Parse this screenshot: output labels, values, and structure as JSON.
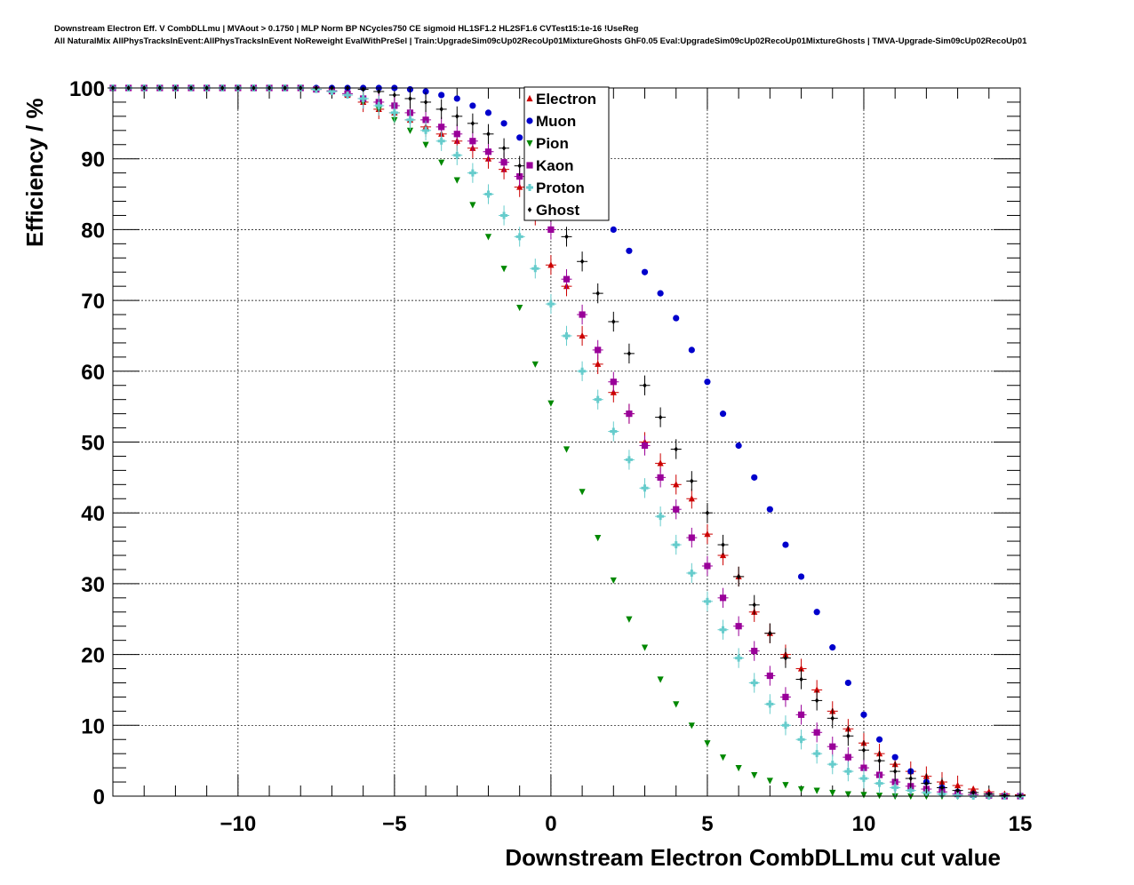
{
  "titles": {
    "line1": "Downstream Electron Eff. V CombDLLmu | MVAout > 0.1750 | MLP Norm BP NCycles750 CE sigmoid HL1SF1.2 HL2SF1.6 CVTest15:1e-16 !UseReg",
    "line2": "All NaturalMix AllPhysTracksInEvent:AllPhysTracksInEvent NoReweight EvalWithPreSel | Train:UpgradeSim09cUp02RecoUp01MixtureGhosts GhF0.05 Eval:UpgradeSim09cUp02RecoUp01MixtureGhosts | TMVA-Upgrade-Sim09cUp02RecoUp01"
  },
  "chart_data": {
    "type": "scatter",
    "xlabel": "Downstream Electron CombDLLmu cut value",
    "ylabel": "Efficiency / %",
    "xlim": [
      -14,
      15
    ],
    "ylim": [
      0,
      100
    ],
    "x_ticks": [
      -10,
      -5,
      0,
      5,
      10,
      15
    ],
    "x_tick_labels": [
      "−10",
      "−5",
      "0",
      "5",
      "10",
      "15"
    ],
    "y_ticks": [
      0,
      10,
      20,
      30,
      40,
      50,
      60,
      70,
      80,
      90,
      100
    ],
    "y_tick_labels": [
      "0",
      "10",
      "20",
      "30",
      "40",
      "50",
      "60",
      "70",
      "80",
      "90",
      "100"
    ],
    "grid": true,
    "legend_position": "top-center",
    "x": [
      -14,
      -13.5,
      -13,
      -12.5,
      -12,
      -11.5,
      -11,
      -10.5,
      -10,
      -9.5,
      -9,
      -8.5,
      -8,
      -7.5,
      -7,
      -6.5,
      -6,
      -5.5,
      -5,
      -4.5,
      -4,
      -3.5,
      -3,
      -2.5,
      -2,
      -1.5,
      -1,
      -0.5,
      0,
      0.5,
      1,
      1.5,
      2,
      2.5,
      3,
      3.5,
      4,
      4.5,
      5,
      5.5,
      6,
      6.5,
      7,
      7.5,
      8,
      8.5,
      9,
      9.5,
      10,
      10.5,
      11,
      11.5,
      12,
      12.5,
      13,
      13.5,
      14,
      14.5,
      15
    ],
    "series": [
      {
        "name": "Electron",
        "color": "#cc0000",
        "marker": "triangle-up",
        "error_bars": true,
        "values": [
          100,
          100,
          100,
          100,
          100,
          100,
          100,
          100,
          100,
          100,
          100,
          100,
          100,
          99.8,
          99.5,
          99,
          98,
          97,
          96.5,
          95.5,
          94.5,
          93.5,
          92.5,
          91.5,
          90,
          88.5,
          86,
          82,
          75,
          72,
          65,
          61,
          57,
          54,
          50,
          47,
          44,
          42,
          37,
          34,
          31,
          26,
          23,
          20,
          18,
          15,
          12,
          9.5,
          7.5,
          6,
          4.5,
          3.5,
          2.8,
          2,
          1.5,
          1,
          0.6,
          0.3,
          0.2
        ]
      },
      {
        "name": "Muon",
        "color": "#0000cc",
        "marker": "circle",
        "error_bars": false,
        "values": [
          100,
          100,
          100,
          100,
          100,
          100,
          100,
          100,
          100,
          100,
          100,
          100,
          100,
          100,
          100,
          100,
          100,
          100,
          100,
          99.8,
          99.5,
          99,
          98.5,
          97.5,
          96.5,
          95,
          93,
          90,
          88,
          86.5,
          84.5,
          82.5,
          80,
          77,
          74,
          71,
          67.5,
          63,
          58.5,
          54,
          49.5,
          45,
          40.5,
          35.5,
          31,
          26,
          21,
          16,
          11.5,
          8,
          5.5,
          3.5,
          2,
          1.2,
          0.6,
          0.3,
          0.1,
          0,
          0
        ]
      },
      {
        "name": "Pion",
        "color": "#008800",
        "marker": "triangle-down",
        "error_bars": false,
        "values": [
          100,
          100,
          100,
          100,
          100,
          100,
          100,
          100,
          100,
          100,
          100,
          100,
          100,
          99.8,
          99.5,
          99,
          98,
          97,
          95.5,
          94,
          92,
          89.5,
          87,
          83.5,
          79,
          74.5,
          69,
          61,
          55.5,
          49,
          43,
          36.5,
          30.5,
          25,
          21,
          16.5,
          13,
          10,
          7.5,
          5.5,
          4,
          3,
          2.2,
          1.6,
          1,
          0.8,
          0.5,
          0.3,
          0.2,
          0.1,
          0,
          0,
          0,
          0,
          0,
          0,
          0,
          0,
          0
        ]
      },
      {
        "name": "Kaon",
        "color": "#990099",
        "marker": "square",
        "error_bars": true,
        "values": [
          100,
          100,
          100,
          100,
          100,
          100,
          100,
          100,
          100,
          100,
          100,
          100,
          100,
          99.8,
          99.6,
          99.2,
          98.5,
          98,
          97.5,
          96.5,
          95.5,
          94.5,
          93.5,
          92.5,
          91,
          89.5,
          87.5,
          85.5,
          80,
          73,
          68,
          63,
          58.5,
          54,
          49.5,
          45,
          40.5,
          36.5,
          32.5,
          28,
          24,
          20.5,
          17,
          14,
          11.5,
          9,
          7,
          5.5,
          4,
          3,
          2,
          1.4,
          1,
          0.6,
          0.3,
          0.2,
          0.1,
          0,
          0
        ]
      },
      {
        "name": "Proton",
        "color": "#66cccc",
        "marker": "plus",
        "error_bars": true,
        "values": [
          100,
          100,
          100,
          100,
          100,
          100,
          100,
          100,
          100,
          100,
          100,
          100,
          100,
          99.8,
          99.5,
          99,
          98.5,
          97.5,
          96.5,
          95.5,
          94,
          92.5,
          90.5,
          88,
          85,
          82,
          79,
          74.5,
          69.5,
          65,
          60,
          56,
          51.5,
          47.5,
          43.5,
          39.5,
          35.5,
          31.5,
          27.5,
          23.5,
          19.5,
          16,
          13,
          10,
          8,
          6,
          4.5,
          3.5,
          2.5,
          1.8,
          1.2,
          0.8,
          0.5,
          0.3,
          0.1,
          0,
          0,
          0,
          0
        ]
      },
      {
        "name": "Ghost",
        "color": "#000000",
        "marker": "diamond",
        "error_bars": true,
        "values": [
          100,
          100,
          100,
          100,
          100,
          100,
          100,
          100,
          100,
          100,
          100,
          100,
          100,
          100,
          100,
          100,
          99.8,
          99.5,
          99,
          98.5,
          98,
          97,
          96,
          95,
          93.5,
          91.5,
          89,
          86,
          82.5,
          79,
          75.5,
          71,
          67,
          62.5,
          58,
          53.5,
          49,
          44.5,
          40,
          35.5,
          31,
          27,
          23,
          19.5,
          16.5,
          13.5,
          11,
          8.5,
          6.5,
          5,
          3.5,
          2.5,
          1.8,
          1.2,
          0.8,
          0.5,
          0.3,
          0.1,
          0.1
        ]
      }
    ]
  }
}
